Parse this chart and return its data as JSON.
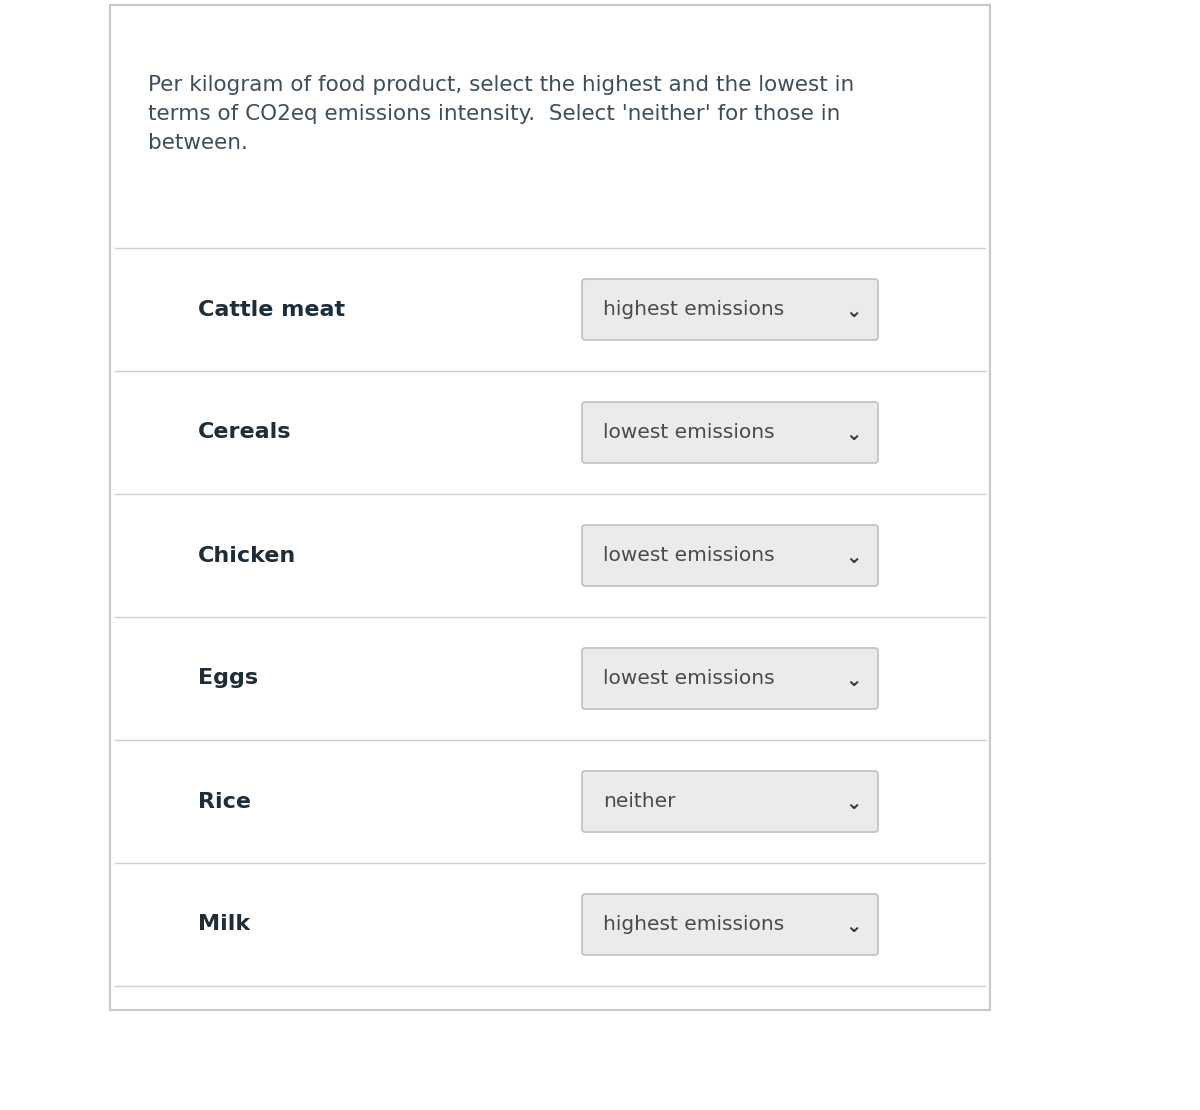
{
  "title": "Per kilogram of food product, select the highest and the lowest in\nterms of CO2eq emissions intensity.  Select 'neither' for those in\nbetween.",
  "title_color": "#3d4f5c",
  "title_fontsize": 15.5,
  "background_color": "#ffffff",
  "outer_border_color": "#c8c8c8",
  "items": [
    {
      "label": "Cattle meat",
      "value": "highest emissions"
    },
    {
      "label": "Cereals",
      "value": "lowest emissions"
    },
    {
      "label": "Chicken",
      "value": "lowest emissions"
    },
    {
      "label": "Eggs",
      "value": "lowest emissions"
    },
    {
      "label": "Rice",
      "value": "neither"
    },
    {
      "label": "Milk",
      "value": "highest emissions"
    }
  ],
  "label_fontsize": 16,
  "label_color": "#1e2d3a",
  "dropdown_fontsize": 14.5,
  "dropdown_text_color": "#4a4a4a",
  "dropdown_bg": "#ebebeb",
  "dropdown_border": "#c0c0c0",
  "separator_color": "#d0d0d0",
  "arrow_color": "#3a3a3a",
  "arrow_fontsize": 14
}
